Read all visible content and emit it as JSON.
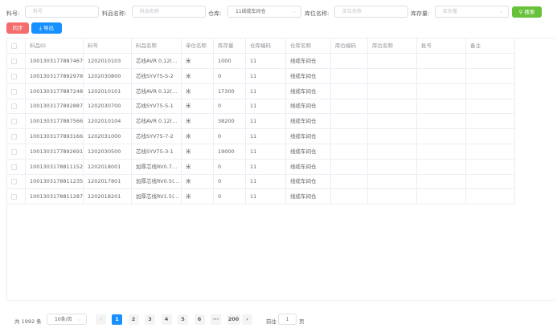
{
  "filters": {
    "item_no": {
      "label": "料号:",
      "placeholder": "料号"
    },
    "item_name": {
      "label": "料品名称:",
      "placeholder": "料品名称"
    },
    "warehouse": {
      "label": "仓库:",
      "value": "11线缆车间仓"
    },
    "location_name": {
      "label": "库位名称:",
      "placeholder": "库位名称"
    },
    "stock": {
      "label": "库存量:",
      "placeholder": "库存量"
    },
    "search_label": "搜索"
  },
  "toolbar": {
    "sync_label": "同步",
    "export_label": "导出"
  },
  "colors": {
    "sync": "#f56c6c",
    "export": "#1890ff",
    "search": "#67c23a",
    "active_page": "#1890ff"
  },
  "table": {
    "columns": [
      "料品ID",
      "料号",
      "料品名称",
      "单位名称",
      "库存量",
      "仓库编码",
      "仓库名称",
      "库位编码",
      "库位名称",
      "批号",
      "备注"
    ],
    "rows": [
      [
        "1001303177887467",
        "1202010103",
        "芯线AVR 0.12(…",
        "米",
        "1000",
        "11",
        "线缆车间仓",
        "",
        "",
        "",
        ""
      ],
      [
        "1001303177892978",
        "1202030800",
        "芯线SYV75-5-2",
        "米",
        "0",
        "11",
        "线缆车间仓",
        "",
        "",
        "",
        ""
      ],
      [
        "1001303177887248",
        "1202010101",
        "芯线AVR 0.12(…",
        "米",
        "17300",
        "11",
        "线缆车间仓",
        "",
        "",
        "",
        ""
      ],
      [
        "1001303177892887",
        "1202030700",
        "芯线SYV75-5-1",
        "米",
        "0",
        "11",
        "线缆车间仓",
        "",
        "",
        "",
        ""
      ],
      [
        "1001303177887566",
        "1202010104",
        "芯线AVR 0.12(…",
        "米",
        "38200",
        "11",
        "线缆车间仓",
        "",
        "",
        "",
        ""
      ],
      [
        "1001303177893166",
        "1202031000",
        "芯线SYV75-7-2",
        "米",
        "0",
        "11",
        "线缆车间仓",
        "",
        "",
        "",
        ""
      ],
      [
        "1001303177892691",
        "1202030500",
        "芯线SYV75-3-1",
        "米",
        "19000",
        "11",
        "线缆车间仓",
        "",
        "",
        "",
        ""
      ],
      [
        "1001303178811152",
        "1202018001",
        "加厚芯线RV0.7…",
        "米",
        "0",
        "11",
        "线缆车间仓",
        "",
        "",
        "",
        ""
      ],
      [
        "1001303178811235",
        "1202017801",
        "加厚芯线RV0.5(…",
        "米",
        "0",
        "11",
        "线缆车间仓",
        "",
        "",
        "",
        ""
      ],
      [
        "1001303178811287",
        "1202018201",
        "加厚芯线RV1.5(…",
        "米",
        "0",
        "11",
        "线缆车间仓",
        "",
        "",
        "",
        ""
      ]
    ]
  },
  "pagination": {
    "total": "共 1992 条",
    "page_size": "10条/页",
    "pages": [
      "1",
      "2",
      "3",
      "4",
      "5",
      "6",
      "···",
      "200"
    ],
    "current": "1",
    "goto_label": "前往",
    "goto_value": "1",
    "goto_suffix": "页"
  }
}
